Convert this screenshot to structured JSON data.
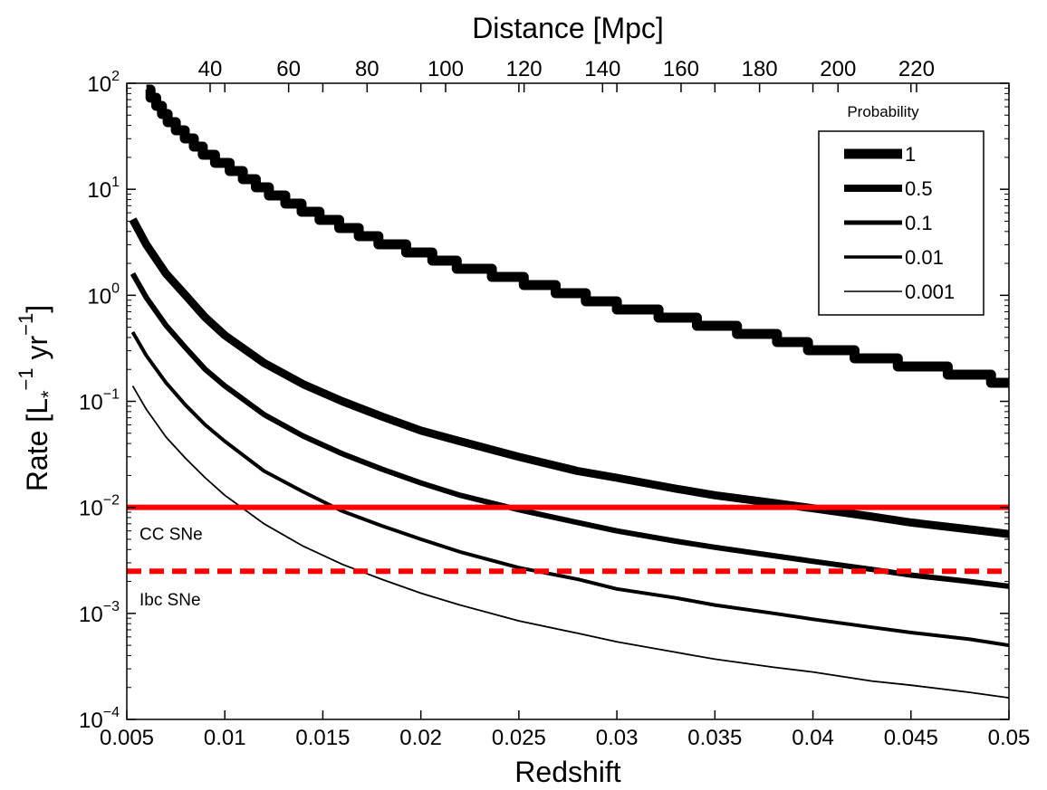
{
  "chart_data": {
    "type": "line",
    "xlabel": "Redshift",
    "x2label": "Distance [Mpc]",
    "ylabel": {
      "base": "Rate [L",
      "sub": "*",
      "sup1": "−1",
      "mid": " yr",
      "sup2": "−1",
      "end": "]"
    },
    "xlim": [
      0.005,
      0.05
    ],
    "ylim": [
      0.0001,
      100
    ],
    "yscale": "log",
    "grid": false,
    "x_ticks": [
      0.005,
      0.01,
      0.015,
      0.02,
      0.025,
      0.03,
      0.035,
      0.04,
      0.045,
      0.05
    ],
    "x_tick_labels": [
      "0.005",
      "0.01",
      "0.015",
      "0.02",
      "0.025",
      "0.03",
      "0.035",
      "0.04",
      "0.045",
      "0.05"
    ],
    "x2_ticks": [
      40,
      60,
      80,
      100,
      120,
      140,
      160,
      180,
      200,
      220
    ],
    "x2_tick_labels": [
      "40",
      "60",
      "80",
      "100",
      "120",
      "140",
      "160",
      "180",
      "200",
      "220"
    ],
    "y_ticks": [
      {
        "value": 0.0001,
        "base": "10",
        "exp": "−4"
      },
      {
        "value": 0.001,
        "base": "10",
        "exp": "−3"
      },
      {
        "value": 0.01,
        "base": "10",
        "exp": "−2"
      },
      {
        "value": 0.1,
        "base": "10",
        "exp": "−1"
      },
      {
        "value": 1,
        "base": "10",
        "exp": "0"
      },
      {
        "value": 10,
        "base": "10",
        "exp": "1"
      },
      {
        "value": 100,
        "base": "10",
        "exp": "2"
      }
    ],
    "legend": {
      "title": "Probability",
      "placement": "top-right"
    },
    "series": [
      {
        "name": "1",
        "color": "#000000",
        "style": "stepped",
        "points": [
          [
            0.006,
            90
          ],
          [
            0.007,
            48
          ],
          [
            0.008,
            32
          ],
          [
            0.009,
            22
          ],
          [
            0.01,
            17
          ],
          [
            0.012,
            10
          ],
          [
            0.014,
            6.5
          ],
          [
            0.016,
            4.5
          ],
          [
            0.018,
            3.2
          ],
          [
            0.02,
            2.5
          ],
          [
            0.022,
            1.9
          ],
          [
            0.025,
            1.4
          ],
          [
            0.028,
            1.0
          ],
          [
            0.03,
            0.8
          ],
          [
            0.033,
            0.62
          ],
          [
            0.035,
            0.52
          ],
          [
            0.038,
            0.4
          ],
          [
            0.04,
            0.32
          ],
          [
            0.043,
            0.26
          ],
          [
            0.045,
            0.22
          ],
          [
            0.048,
            0.18
          ],
          [
            0.05,
            0.15
          ]
        ]
      },
      {
        "name": "0.5",
        "color": "#000000",
        "style": "solid",
        "points": [
          [
            0.0053,
            5.2
          ],
          [
            0.006,
            3.0
          ],
          [
            0.007,
            1.6
          ],
          [
            0.008,
            1.0
          ],
          [
            0.009,
            0.62
          ],
          [
            0.01,
            0.42
          ],
          [
            0.012,
            0.23
          ],
          [
            0.014,
            0.145
          ],
          [
            0.016,
            0.1
          ],
          [
            0.018,
            0.072
          ],
          [
            0.02,
            0.053
          ],
          [
            0.022,
            0.042
          ],
          [
            0.025,
            0.03
          ],
          [
            0.028,
            0.022
          ],
          [
            0.03,
            0.019
          ],
          [
            0.033,
            0.015
          ],
          [
            0.035,
            0.013
          ],
          [
            0.038,
            0.011
          ],
          [
            0.04,
            0.0098
          ],
          [
            0.043,
            0.0082
          ],
          [
            0.045,
            0.0072
          ],
          [
            0.048,
            0.0062
          ],
          [
            0.05,
            0.0056
          ]
        ]
      },
      {
        "name": "0.1",
        "color": "#000000",
        "style": "solid",
        "points": [
          [
            0.0053,
            1.6
          ],
          [
            0.006,
            0.95
          ],
          [
            0.007,
            0.52
          ],
          [
            0.008,
            0.32
          ],
          [
            0.009,
            0.2
          ],
          [
            0.01,
            0.14
          ],
          [
            0.012,
            0.075
          ],
          [
            0.014,
            0.047
          ],
          [
            0.016,
            0.032
          ],
          [
            0.018,
            0.023
          ],
          [
            0.02,
            0.017
          ],
          [
            0.022,
            0.013
          ],
          [
            0.025,
            0.0095
          ],
          [
            0.028,
            0.0072
          ],
          [
            0.03,
            0.006
          ],
          [
            0.033,
            0.0048
          ],
          [
            0.035,
            0.0042
          ],
          [
            0.038,
            0.0035
          ],
          [
            0.04,
            0.0031
          ],
          [
            0.043,
            0.0026
          ],
          [
            0.045,
            0.0023
          ],
          [
            0.048,
            0.002
          ],
          [
            0.05,
            0.0018
          ]
        ]
      },
      {
        "name": "0.01",
        "color": "#000000",
        "style": "solid",
        "points": [
          [
            0.0053,
            0.45
          ],
          [
            0.006,
            0.27
          ],
          [
            0.007,
            0.15
          ],
          [
            0.008,
            0.092
          ],
          [
            0.009,
            0.06
          ],
          [
            0.01,
            0.042
          ],
          [
            0.012,
            0.022
          ],
          [
            0.014,
            0.014
          ],
          [
            0.016,
            0.0092
          ],
          [
            0.018,
            0.0067
          ],
          [
            0.02,
            0.005
          ],
          [
            0.022,
            0.0038
          ],
          [
            0.025,
            0.0027
          ],
          [
            0.028,
            0.0021
          ],
          [
            0.03,
            0.0017
          ],
          [
            0.033,
            0.0014
          ],
          [
            0.035,
            0.0012
          ],
          [
            0.038,
            0.001
          ],
          [
            0.04,
            0.00088
          ],
          [
            0.043,
            0.00074
          ],
          [
            0.045,
            0.00066
          ],
          [
            0.048,
            0.00057
          ],
          [
            0.05,
            0.0005
          ]
        ]
      },
      {
        "name": "0.001",
        "color": "#000000",
        "style": "solid",
        "points": [
          [
            0.0053,
            0.14
          ],
          [
            0.006,
            0.084
          ],
          [
            0.007,
            0.046
          ],
          [
            0.008,
            0.029
          ],
          [
            0.009,
            0.019
          ],
          [
            0.01,
            0.013
          ],
          [
            0.012,
            0.007
          ],
          [
            0.014,
            0.0043
          ],
          [
            0.016,
            0.0029
          ],
          [
            0.018,
            0.0021
          ],
          [
            0.02,
            0.00155
          ],
          [
            0.022,
            0.0012
          ],
          [
            0.025,
            0.00085
          ],
          [
            0.028,
            0.00065
          ],
          [
            0.03,
            0.00054
          ],
          [
            0.033,
            0.00043
          ],
          [
            0.035,
            0.00037
          ],
          [
            0.038,
            0.00031
          ],
          [
            0.04,
            0.00028
          ],
          [
            0.043,
            0.00023
          ],
          [
            0.045,
            0.00021
          ],
          [
            0.048,
            0.00018
          ],
          [
            0.05,
            0.00016
          ]
        ]
      }
    ],
    "reference_lines": [
      {
        "label": "CC SNe",
        "y": 0.01,
        "color": "#ff0000",
        "style": "solid"
      },
      {
        "label": "Ibc SNe",
        "y": 0.0025,
        "color": "#ff0000",
        "style": "dashed"
      }
    ]
  }
}
